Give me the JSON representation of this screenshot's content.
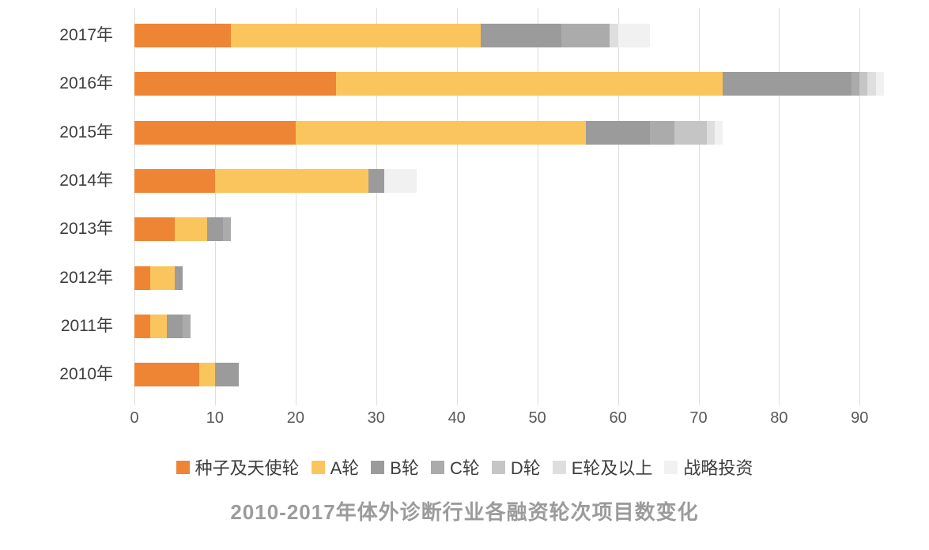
{
  "chart_data": {
    "type": "bar",
    "orientation": "horizontal",
    "stacked": true,
    "title": "2010-2017年体外诊断行业各融资轮次项目数变化",
    "categories": [
      "2017年",
      "2016年",
      "2015年",
      "2014年",
      "2013年",
      "2012年",
      "2011年",
      "2010年"
    ],
    "series": [
      {
        "name": "种子及天使轮",
        "color": "#EE8534",
        "values": [
          12,
          25,
          20,
          10,
          5,
          2,
          2,
          8
        ]
      },
      {
        "name": "A轮",
        "color": "#FBC55D",
        "values": [
          31,
          48,
          36,
          19,
          4,
          3,
          2,
          2
        ]
      },
      {
        "name": "B轮",
        "color": "#9B9B9B",
        "values": [
          10,
          16,
          8,
          2,
          2,
          1,
          2,
          3
        ]
      },
      {
        "name": "C轮",
        "color": "#ABABAB",
        "values": [
          6,
          1,
          3,
          0,
          1,
          0,
          1,
          0
        ]
      },
      {
        "name": "D轮",
        "color": "#C5C5C5",
        "values": [
          0,
          1,
          4,
          0,
          0,
          0,
          0,
          0
        ]
      },
      {
        "name": "E轮及以上",
        "color": "#DEDEDE",
        "values": [
          1,
          1,
          1,
          0,
          0,
          0,
          0,
          0
        ]
      },
      {
        "name": "战略投资",
        "color": "#F1F1F1",
        "values": [
          4,
          1,
          1,
          4,
          0,
          0,
          0,
          0
        ]
      }
    ],
    "totals": [
      64,
      93,
      73,
      35,
      12,
      6,
      7,
      13
    ],
    "x_ticks": [
      0,
      10,
      20,
      30,
      40,
      50,
      60,
      70,
      80,
      90
    ],
    "xlim": [
      0,
      93.5
    ],
    "grid": "vertical",
    "legend_position": "bottom",
    "background_color": "#ffffff",
    "gridline_color": "#dedede",
    "axis_label_color": "#595959",
    "category_label_color": "#3d3d3d",
    "title_color": "#9b9b9b"
  }
}
